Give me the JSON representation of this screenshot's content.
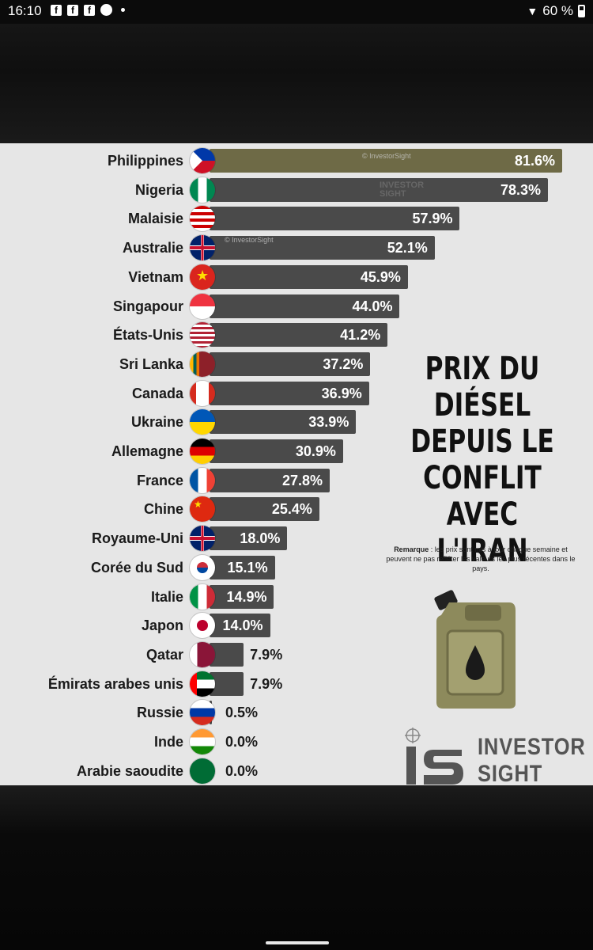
{
  "status_bar": {
    "time": "16:10",
    "battery": "60 %"
  },
  "chart_data": {
    "type": "bar",
    "orientation": "horizontal",
    "title": "PRIX DU DIÉSEL DEPUIS LE CONFLIT AVEC L'IRAN",
    "categories": [
      "Philippines",
      "Nigeria",
      "Malaisie",
      "Australie",
      "Vietnam",
      "Singapour",
      "États-Unis",
      "Sri Lanka",
      "Canada",
      "Ukraine",
      "Allemagne",
      "France",
      "Chine",
      "Royaume-Uni",
      "Corée du Sud",
      "Italie",
      "Japon",
      "Qatar",
      "Émirats arabes unis",
      "Russie",
      "Inde",
      "Arabie saoudite"
    ],
    "values": [
      81.6,
      78.3,
      57.9,
      52.1,
      45.9,
      44.0,
      41.2,
      37.2,
      36.9,
      33.9,
      30.9,
      27.8,
      25.4,
      18.0,
      15.1,
      14.9,
      14.0,
      7.9,
      7.9,
      0.5,
      0.0,
      0.0
    ],
    "value_labels": [
      "81.6%",
      "78.3%",
      "57.9%",
      "52.1%",
      "45.9%",
      "44.0%",
      "41.2%",
      "37.2%",
      "36.9%",
      "33.9%",
      "30.9%",
      "27.8%",
      "25.4%",
      "18.0%",
      "15.1%",
      "14.9%",
      "14.0%",
      "7.9%",
      "7.9%",
      "0.5%",
      "0.0%",
      "0.0%"
    ],
    "xlim": [
      0,
      81.6
    ],
    "unit": "%"
  },
  "headline": {
    "line1": "PRIX DU",
    "line2": "DIÉSEL",
    "line3": "DEPUIS LE",
    "line4": "CONFLIT",
    "line5": "AVEC L'IRAN"
  },
  "note": {
    "label": "Remarque",
    "text": " : les prix sont mis à jour chaque semaine et peuvent ne pas refléter les valeurs les plus récentes dans le pays."
  },
  "watermark": {
    "copyright": "© InvestorSight",
    "brand_line1": "INVESTOR",
    "brand_line2": "SIGHT"
  },
  "brand": {
    "line1": "INVESTOR",
    "line2": "SIGHT"
  },
  "colors": {
    "bar": "#4a4a4a",
    "top_bar": "#6e6a46",
    "panel_bg": "#e6e6e6",
    "jerrycan": "#8d8a5c"
  }
}
